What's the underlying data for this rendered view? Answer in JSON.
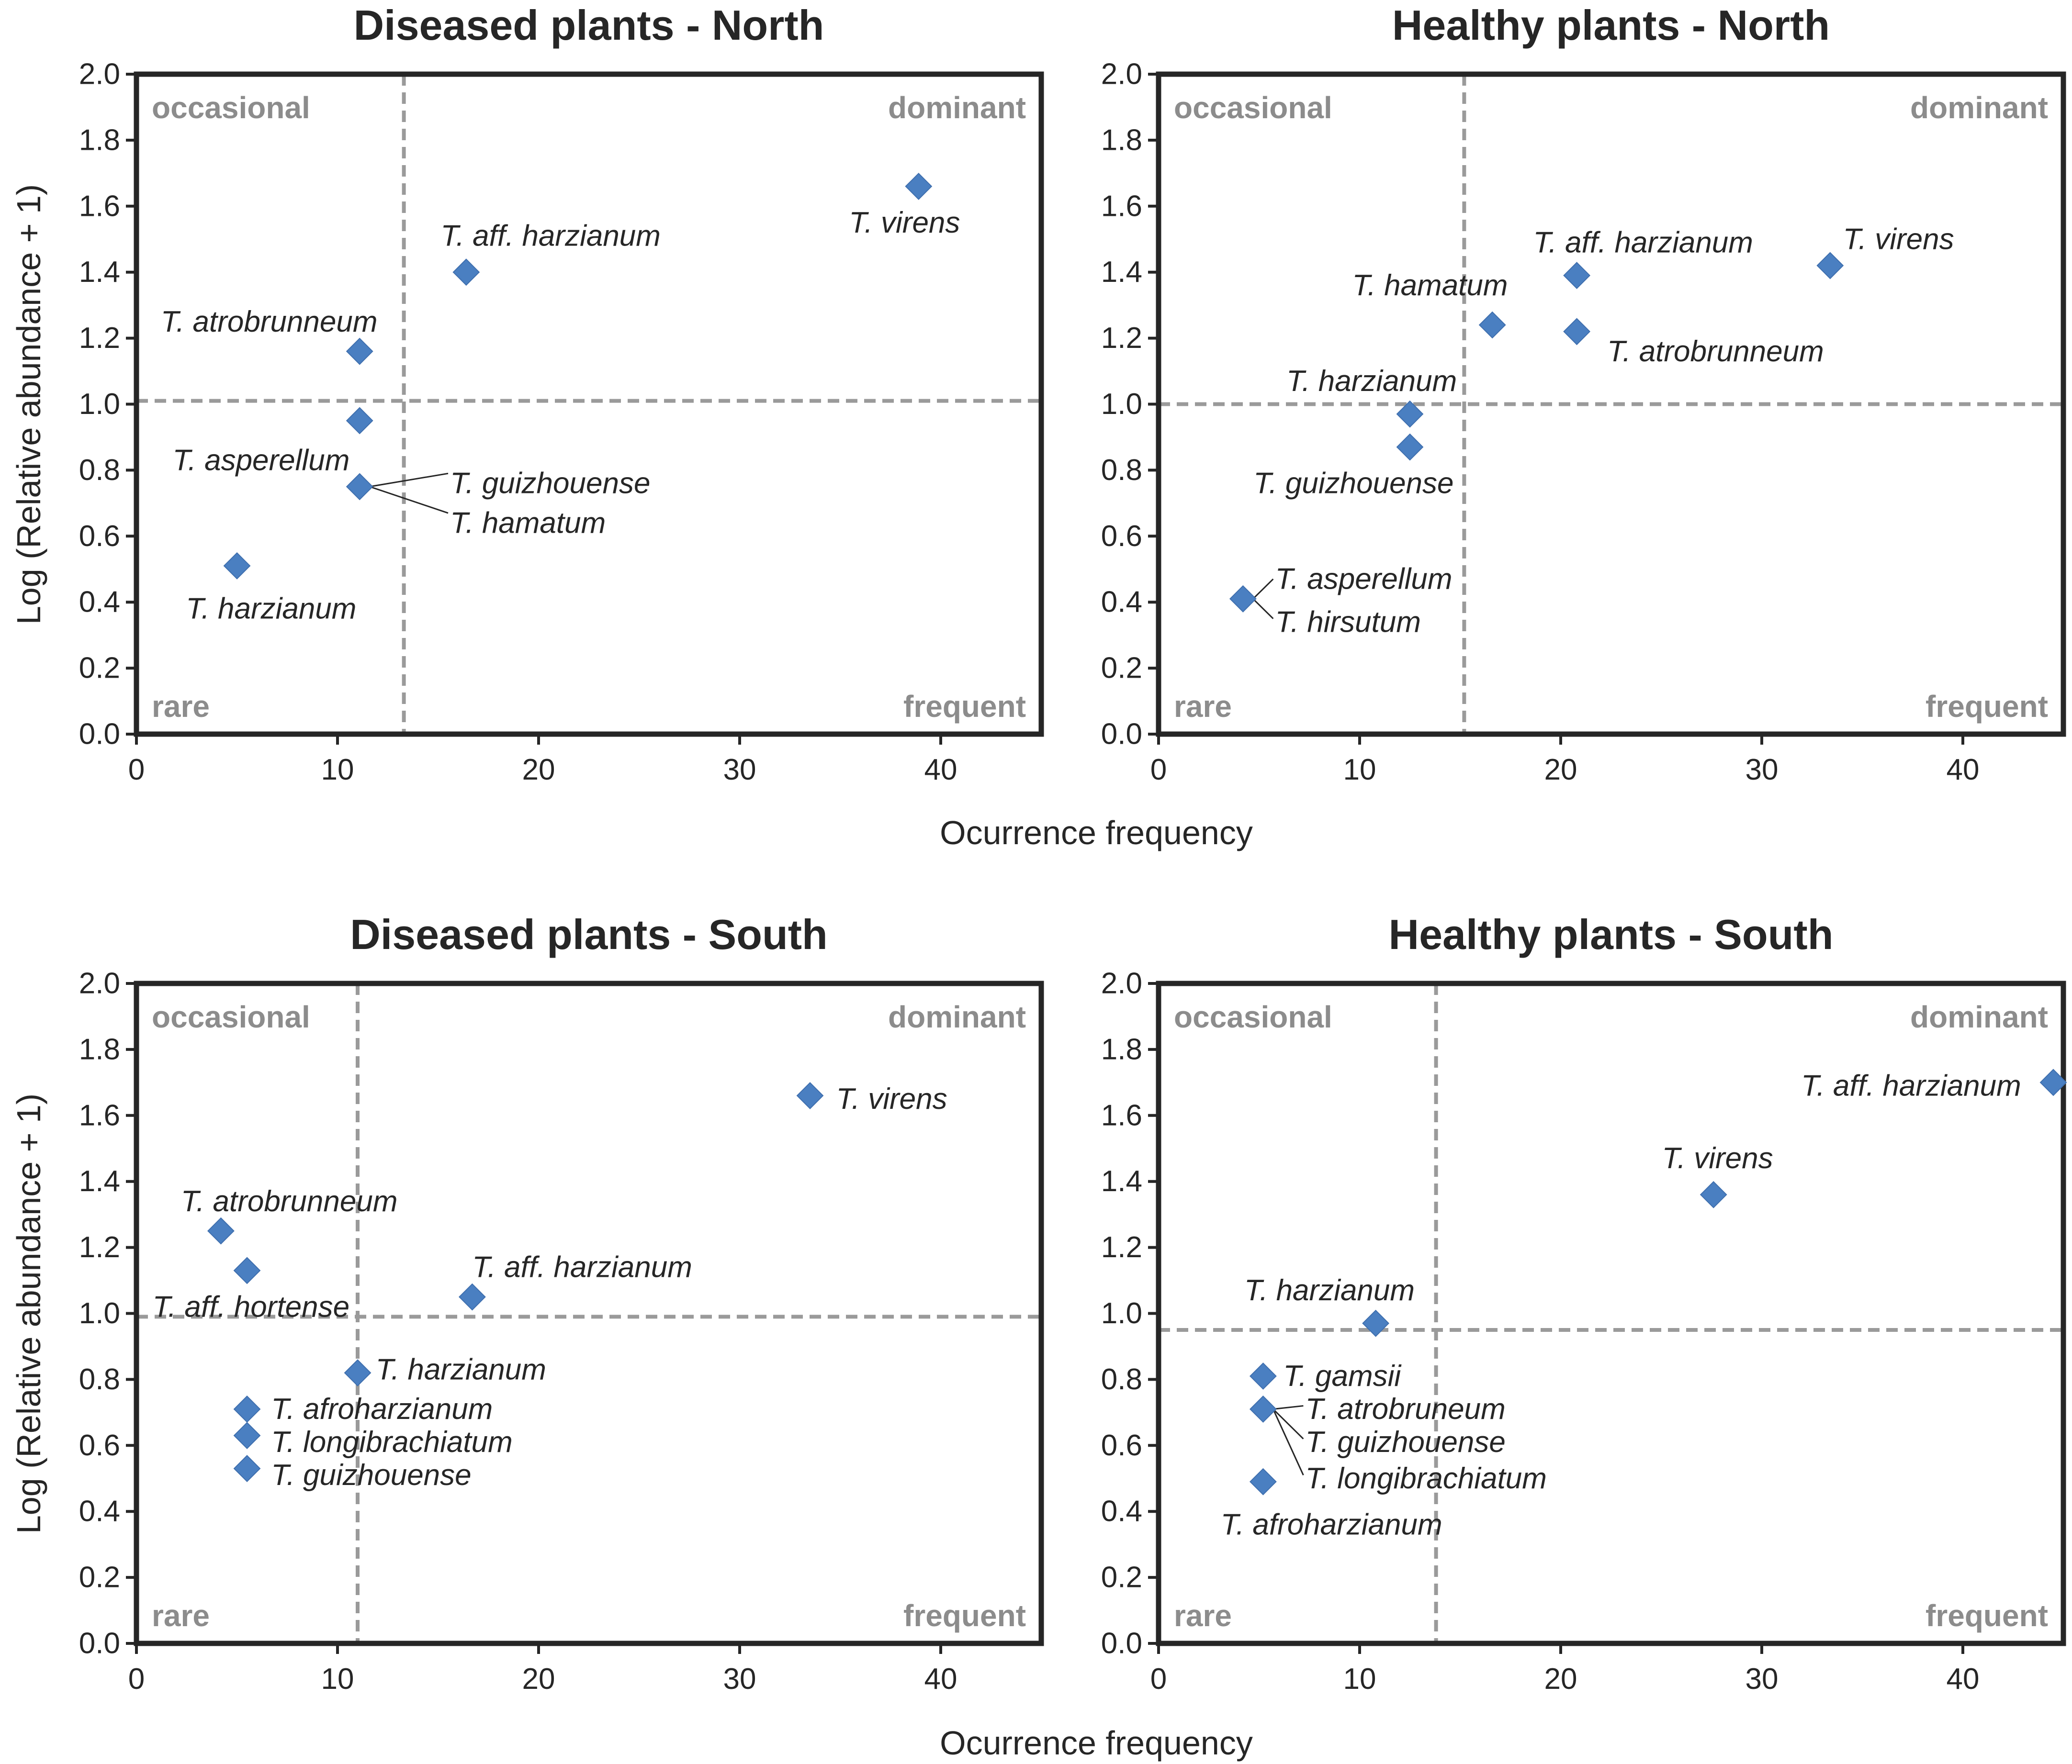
{
  "x_axis_label": "Ocurrence frequency",
  "y_axis_label": "Log (Relative abundance + 1)",
  "quadrant_labels": {
    "top_left": "occasional",
    "top_right": "dominant",
    "bottom_left": "rare",
    "bottom_right": "frequent"
  },
  "colors": {
    "marker": "#4a7fc1",
    "guide": "#9a9a9a",
    "frame": "#262626",
    "quadrant_text": "#8c8c8c"
  },
  "chart_data": [
    {
      "type": "scatter",
      "title": "Diseased plants - North",
      "xlabel": "",
      "ylabel": "Log (Relative abundance + 1)",
      "xlim": [
        0,
        45
      ],
      "ylim": [
        0,
        2.0
      ],
      "x_ticks": [
        "0",
        "10",
        "20",
        "30",
        "40"
      ],
      "y_ticks": [
        "0.0",
        "0.2",
        "0.4",
        "0.6",
        "0.8",
        "1.0",
        "1.2",
        "1.4",
        "1.6",
        "1.8",
        "2.0"
      ],
      "threshold_x": 13.3,
      "threshold_y": 1.01,
      "points": [
        {
          "x": 38.9,
          "y": 1.66
        },
        {
          "x": 16.4,
          "y": 1.4
        },
        {
          "x": 11.1,
          "y": 1.16
        },
        {
          "x": 11.1,
          "y": 0.95
        },
        {
          "x": 11.1,
          "y": 0.75
        },
        {
          "x": 5.0,
          "y": 0.51
        }
      ],
      "labels": [
        {
          "text": "T. virens",
          "x": 38.2,
          "y": 1.52,
          "anchor": "middle"
        },
        {
          "text": "T. aff. harzianum",
          "x": 20.6,
          "y": 1.48,
          "anchor": "middle"
        },
        {
          "text": "T. atrobrunneum",
          "x": 6.6,
          "y": 1.22,
          "anchor": "middle"
        },
        {
          "text": "T. asperellum",
          "x": 6.2,
          "y": 0.8,
          "anchor": "middle"
        },
        {
          "text": "T. guizhouense",
          "x": 15.6,
          "y": 0.73,
          "anchor": "start"
        },
        {
          "text": "T. hamatum",
          "x": 15.6,
          "y": 0.61,
          "anchor": "start"
        },
        {
          "text": "T. harzianum",
          "x": 6.7,
          "y": 0.35,
          "anchor": "middle"
        }
      ],
      "leaders": [
        {
          "from": [
            11.6,
            0.75
          ],
          "to": [
            15.5,
            0.79
          ]
        },
        {
          "from": [
            11.6,
            0.75
          ],
          "to": [
            15.5,
            0.67
          ]
        }
      ]
    },
    {
      "type": "scatter",
      "title": "Healthy plants - North",
      "xlabel": "Ocurrence frequency",
      "ylabel": "",
      "xlim": [
        0,
        45
      ],
      "ylim": [
        0,
        2.0
      ],
      "x_ticks": [
        "0",
        "10",
        "20",
        "30",
        "40"
      ],
      "y_ticks": [
        "0.0",
        "0.2",
        "0.4",
        "0.6",
        "0.8",
        "1.0",
        "1.2",
        "1.4",
        "1.6",
        "1.8",
        "2.0"
      ],
      "threshold_x": 15.2,
      "threshold_y": 1.0,
      "points": [
        {
          "x": 33.4,
          "y": 1.42
        },
        {
          "x": 20.8,
          "y": 1.39
        },
        {
          "x": 16.6,
          "y": 1.24
        },
        {
          "x": 20.8,
          "y": 1.22
        },
        {
          "x": 12.5,
          "y": 0.97
        },
        {
          "x": 12.5,
          "y": 0.87
        },
        {
          "x": 4.2,
          "y": 0.41
        }
      ],
      "labels": [
        {
          "text": "T. virens",
          "x": 36.8,
          "y": 1.47,
          "anchor": "middle"
        },
        {
          "text": "T. aff. harzianum",
          "x": 24.1,
          "y": 1.46,
          "anchor": "middle"
        },
        {
          "text": "T. hamatum",
          "x": 13.5,
          "y": 1.33,
          "anchor": "middle"
        },
        {
          "text": "T. atrobrunneum",
          "x": 27.7,
          "y": 1.13,
          "anchor": "middle"
        },
        {
          "text": "T. harzianum",
          "x": 10.6,
          "y": 1.04,
          "anchor": "middle"
        },
        {
          "text": "T. guizhouense",
          "x": 9.7,
          "y": 0.73,
          "anchor": "middle"
        },
        {
          "text": "T. asperellum",
          "x": 5.8,
          "y": 0.44,
          "anchor": "start"
        },
        {
          "text": "T. hirsutum",
          "x": 5.8,
          "y": 0.31,
          "anchor": "start"
        }
      ],
      "leaders": [
        {
          "from": [
            4.7,
            0.41
          ],
          "to": [
            5.7,
            0.47
          ]
        },
        {
          "from": [
            4.7,
            0.41
          ],
          "to": [
            5.7,
            0.35
          ]
        }
      ]
    },
    {
      "type": "scatter",
      "title": "Diseased plants - South",
      "xlabel": "",
      "ylabel": "Log (Relative abundance + 1)",
      "xlim": [
        0,
        45
      ],
      "ylim": [
        0,
        2.0
      ],
      "x_ticks": [
        "0",
        "10",
        "20",
        "30",
        "40"
      ],
      "y_ticks": [
        "0.0",
        "0.2",
        "0.4",
        "0.6",
        "0.8",
        "1.0",
        "1.2",
        "1.4",
        "1.6",
        "1.8",
        "2.0"
      ],
      "threshold_x": 11.0,
      "threshold_y": 0.99,
      "points": [
        {
          "x": 33.5,
          "y": 1.66
        },
        {
          "x": 4.2,
          "y": 1.25
        },
        {
          "x": 5.5,
          "y": 1.13
        },
        {
          "x": 16.7,
          "y": 1.05
        },
        {
          "x": 11.0,
          "y": 0.82
        },
        {
          "x": 5.5,
          "y": 0.71
        },
        {
          "x": 5.5,
          "y": 0.63
        },
        {
          "x": 5.5,
          "y": 0.53
        }
      ],
      "labels": [
        {
          "text": "T. virens",
          "x": 34.8,
          "y": 1.62,
          "anchor": "start"
        },
        {
          "text": "T. aff. harzianum",
          "x": 16.7,
          "y": 1.11,
          "anchor": "start"
        },
        {
          "text": "T. atrobrunneum",
          "x": 7.6,
          "y": 1.31,
          "anchor": "middle"
        },
        {
          "text": "T. aff. hortense",
          "x": 5.7,
          "y": 0.99,
          "anchor": "middle"
        },
        {
          "text": "T. harzianum",
          "x": 11.9,
          "y": 0.8,
          "anchor": "start"
        },
        {
          "text": "T. afroharzianum",
          "x": 6.7,
          "y": 0.68,
          "anchor": "start"
        },
        {
          "text": "T. longibrachiatum",
          "x": 6.7,
          "y": 0.58,
          "anchor": "start"
        },
        {
          "text": "T. guizhouense",
          "x": 6.7,
          "y": 0.48,
          "anchor": "start"
        }
      ],
      "leaders": []
    },
    {
      "type": "scatter",
      "title": "Healthy plants - South",
      "xlabel": "Ocurrence frequency",
      "ylabel": "",
      "xlim": [
        0,
        45
      ],
      "ylim": [
        0,
        2.0
      ],
      "x_ticks": [
        "0",
        "10",
        "20",
        "30",
        "40"
      ],
      "y_ticks": [
        "0.0",
        "0.2",
        "0.4",
        "0.6",
        "0.8",
        "1.0",
        "1.2",
        "1.4",
        "1.6",
        "1.8",
        "2.0"
      ],
      "threshold_x": 13.8,
      "threshold_y": 0.95,
      "points": [
        {
          "x": 44.5,
          "y": 1.7
        },
        {
          "x": 27.6,
          "y": 1.36
        },
        {
          "x": 10.8,
          "y": 0.97
        },
        {
          "x": 5.2,
          "y": 0.81
        },
        {
          "x": 5.2,
          "y": 0.71
        },
        {
          "x": 5.2,
          "y": 0.49
        }
      ],
      "labels": [
        {
          "text": "T. aff. harzianum",
          "x": 42.9,
          "y": 1.66,
          "anchor": "end"
        },
        {
          "text": "T. virens",
          "x": 27.8,
          "y": 1.44,
          "anchor": "middle"
        },
        {
          "text": "T. harzianum",
          "x": 8.5,
          "y": 1.04,
          "anchor": "middle"
        },
        {
          "text": "T. gamsii",
          "x": 6.2,
          "y": 0.78,
          "anchor": "start"
        },
        {
          "text": "T. atrobruneum",
          "x": 7.3,
          "y": 0.68,
          "anchor": "start"
        },
        {
          "text": "T. guizhouense",
          "x": 7.3,
          "y": 0.58,
          "anchor": "start"
        },
        {
          "text": "T. longibrachiatum",
          "x": 7.3,
          "y": 0.47,
          "anchor": "start"
        },
        {
          "text": "T. afroharzianum",
          "x": 8.6,
          "y": 0.33,
          "anchor": "middle"
        }
      ],
      "leaders": [
        {
          "from": [
            5.7,
            0.71
          ],
          "to": [
            7.2,
            0.72
          ]
        },
        {
          "from": [
            5.7,
            0.71
          ],
          "to": [
            7.2,
            0.62
          ]
        },
        {
          "from": [
            5.7,
            0.71
          ],
          "to": [
            7.2,
            0.51
          ]
        }
      ]
    }
  ]
}
